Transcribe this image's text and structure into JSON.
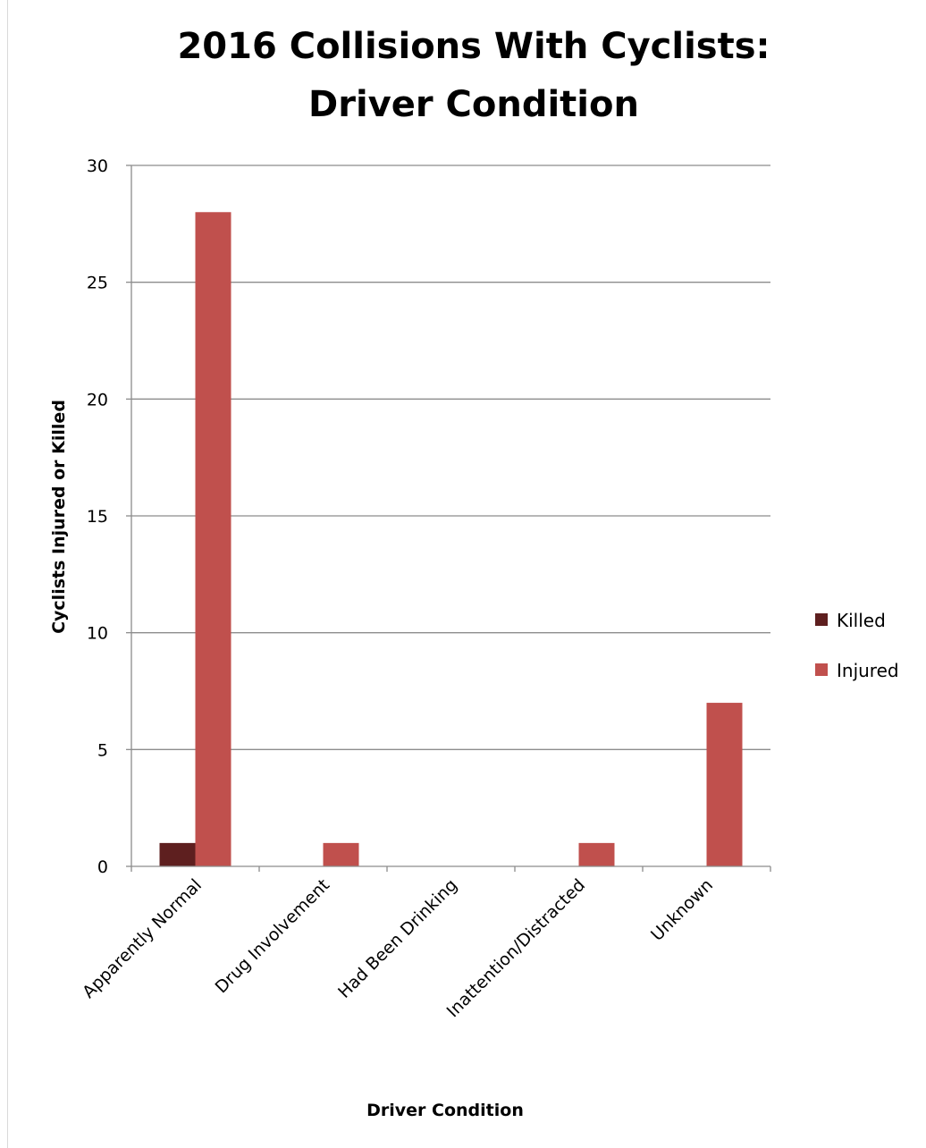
{
  "chart_data": {
    "type": "bar",
    "title_lines": [
      "2016 Collisions With Cyclists:",
      "Driver Condition"
    ],
    "xlabel": "Driver Condition",
    "ylabel": "Cyclists  Injured or Killed",
    "categories": [
      "Apparently Normal",
      "Drug Involvement",
      "Had Been Drinking",
      "Inattention/Distracted",
      "Unknown"
    ],
    "series": [
      {
        "name": "Killed",
        "color": "#5e1f1f",
        "values": [
          1,
          0,
          0,
          0,
          0
        ]
      },
      {
        "name": "Injured",
        "color": "#c0504d",
        "values": [
          28,
          1,
          0,
          1,
          7
        ]
      }
    ],
    "ylim": [
      0,
      30
    ],
    "yticks": [
      "0",
      "5",
      "10",
      "15",
      "20",
      "25",
      "30"
    ],
    "grid": true,
    "legend_position": "right"
  }
}
